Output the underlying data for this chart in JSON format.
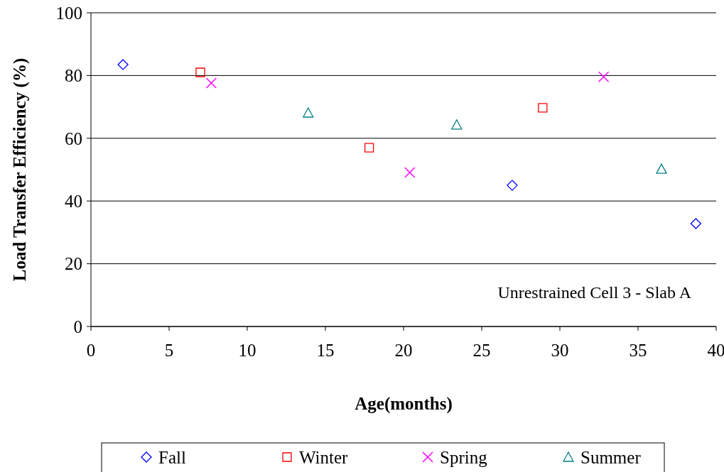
{
  "chart_data": {
    "type": "scatter",
    "xlabel": "Age(months)",
    "ylabel": "Load Transfer Efficiency (%)",
    "xlim": [
      0,
      40
    ],
    "xticks": [
      0,
      5,
      10,
      15,
      20,
      25,
      30,
      35,
      40
    ],
    "ylim": [
      0,
      100
    ],
    "yticks": [
      0,
      20,
      40,
      60,
      80,
      100
    ],
    "grid": "y",
    "legend": "bottom",
    "annotations": [
      "Unrestrained Cell 3 - Slab A"
    ],
    "series": [
      {
        "name": "Fall",
        "color": "#0000ff",
        "marker": "diamond",
        "x": [
          2.05,
          26.95,
          38.7
        ],
        "values": [
          83.5,
          45,
          32.8
        ]
      },
      {
        "name": "Winter",
        "color": "#ff0000",
        "marker": "square",
        "x": [
          7.0,
          17.8,
          28.9
        ],
        "values": [
          81,
          57,
          69.7
        ]
      },
      {
        "name": "Spring",
        "color": "#ff00ff",
        "marker": "cross",
        "x": [
          7.7,
          20.4,
          32.8
        ],
        "values": [
          77.6,
          49.1,
          79.6
        ]
      },
      {
        "name": "Summer",
        "color": "#008080",
        "marker": "triangle",
        "x": [
          13.9,
          23.4,
          36.5
        ],
        "values": [
          68.1,
          64.3,
          50.2
        ]
      }
    ]
  }
}
